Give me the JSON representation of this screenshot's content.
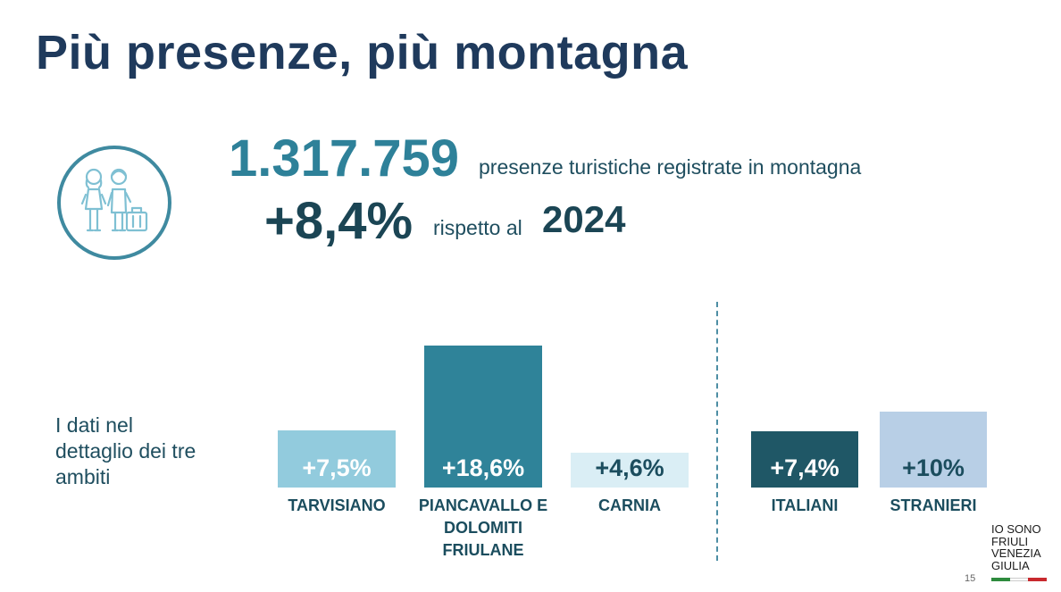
{
  "title": "Più presenze, più montagna",
  "headline": {
    "number": "1.317.759",
    "description": "presenze turistiche registrate in montagna",
    "change": "+8,4%",
    "comparison_text": "rispetto al",
    "comparison_year": "2024"
  },
  "side_label": "I dati nel dettaglio dei tre ambiti",
  "icon": "tourists-with-suitcase-icon",
  "chart_data": {
    "type": "bar",
    "groups": [
      {
        "categories": [
          "TARVISIANO",
          "PIANCAVALLO E DOLOMITI FRIULANE",
          "CARNIA"
        ],
        "values": [
          7.5,
          18.6,
          4.6
        ],
        "labels": [
          "+7,5%",
          "+18,6%",
          "+4,6%"
        ],
        "colors": [
          "#92cbdd",
          "#2f8399",
          "#daeef5"
        ],
        "label_colors": [
          "#ffffff",
          "#ffffff",
          "#1b4d5e"
        ]
      },
      {
        "categories": [
          "ITALIANI",
          "STRANIERI"
        ],
        "values": [
          7.4,
          10
        ],
        "labels": [
          "+7,4%",
          "+10%"
        ],
        "colors": [
          "#1f5766",
          "#b8cfe6"
        ],
        "label_colors": [
          "#ffffff",
          "#1b4d5e"
        ]
      }
    ],
    "ylim": [
      0,
      18.6
    ],
    "grid": false,
    "legend": "none"
  },
  "logo": {
    "lines": [
      "IO SONO",
      "FRIULI",
      "VENEZIA",
      "GIULIA"
    ],
    "flag_colors": [
      "#2e8b3e",
      "#ffffff",
      "#c8292e"
    ]
  },
  "page_number": "15"
}
